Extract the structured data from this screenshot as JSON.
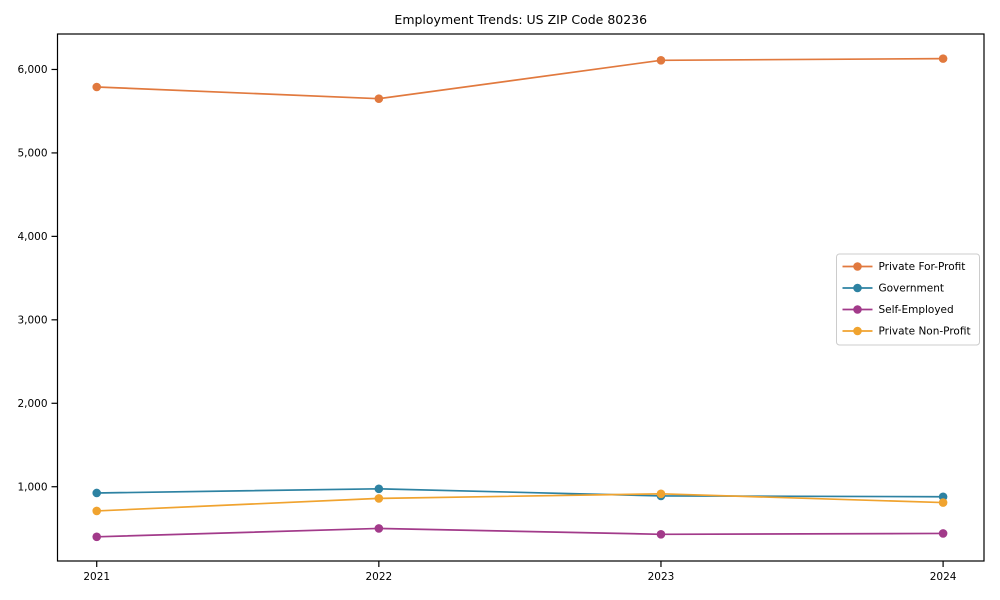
{
  "figure": {
    "background": "#ffffff",
    "axis_color": "#000000",
    "text_color": "#000000",
    "legend_border_color": "#cccccc"
  },
  "chart_data": {
    "type": "line",
    "title": "Employment Trends: US ZIP Code 80236",
    "x": [
      2021,
      2022,
      2023,
      2024
    ],
    "x_tick_labels": [
      "2021",
      "2022",
      "2023",
      "2024"
    ],
    "series": [
      {
        "name": "Private For-Profit",
        "color": "#E1793E",
        "values": [
          5790,
          5650,
          6110,
          6130
        ]
      },
      {
        "name": "Government",
        "color": "#2D82A2",
        "values": [
          925,
          975,
          890,
          880
        ]
      },
      {
        "name": "Self-Employed",
        "color": "#A23A8A",
        "values": [
          400,
          500,
          430,
          440
        ]
      },
      {
        "name": "Private Non-Profit",
        "color": "#F0A32F",
        "values": [
          710,
          860,
          915,
          810
        ]
      }
    ],
    "yticks": [
      1000,
      2000,
      3000,
      4000,
      5000,
      6000
    ],
    "ytick_labels": [
      "1,000",
      "2,000",
      "3,000",
      "4,000",
      "5,000",
      "6,000"
    ],
    "ylim": [
      110,
      6425
    ],
    "xlim": [
      2020.861,
      2024.145
    ],
    "xlabel": "",
    "ylabel": "",
    "grid": false,
    "marker": "circle",
    "legend": {
      "position": "center right",
      "entries": [
        "Private For-Profit",
        "Government",
        "Self-Employed",
        "Private Non-Profit"
      ]
    }
  }
}
